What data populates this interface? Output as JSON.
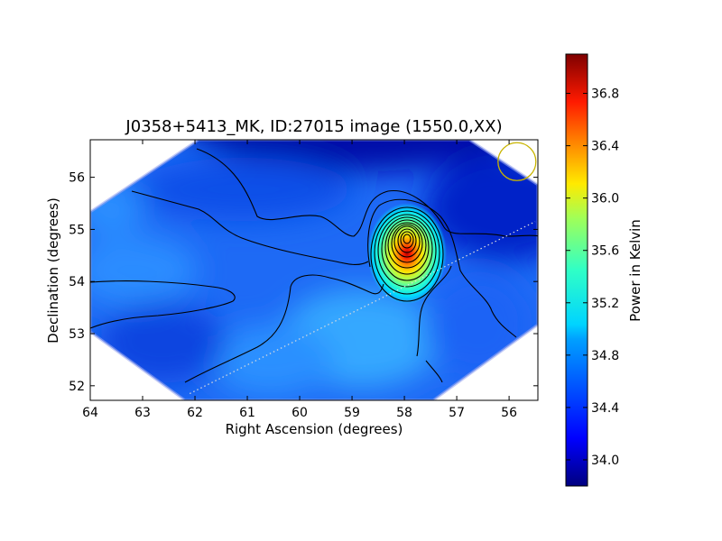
{
  "chart_data": {
    "type": "heatmap",
    "title": "J0358+5413_MK, ID:27015 image (1550.0,XX)",
    "xlabel": "Right Ascension (degrees)",
    "ylabel": "Declination (degrees)",
    "xlim": [
      64,
      55.45
    ],
    "ylim": [
      51.72,
      56.72
    ],
    "x_ticks": [
      64,
      63,
      62,
      61,
      60,
      59,
      58,
      57,
      56
    ],
    "y_ticks": [
      52,
      53,
      54,
      55,
      56
    ],
    "colorbar": {
      "label": "Power in Kelvin",
      "range": [
        33.8,
        37.1
      ],
      "ticks": [
        34.0,
        34.4,
        34.8,
        35.2,
        35.6,
        36.0,
        36.4,
        36.8
      ],
      "colormap": "jet"
    },
    "peak_source": {
      "ra": 57.95,
      "dec": 54.8,
      "power": 37.05
    },
    "background_level": 34.4,
    "beam_marker": {
      "ra": 55.85,
      "dec": 56.3,
      "color": "#c8b400"
    },
    "scan_line": {
      "from": [
        62.1,
        51.85
      ],
      "to": [
        55.5,
        55.15
      ],
      "style": "dotted",
      "color": "#dddddd"
    },
    "contours": {
      "count": 14,
      "color": "#000000"
    }
  }
}
